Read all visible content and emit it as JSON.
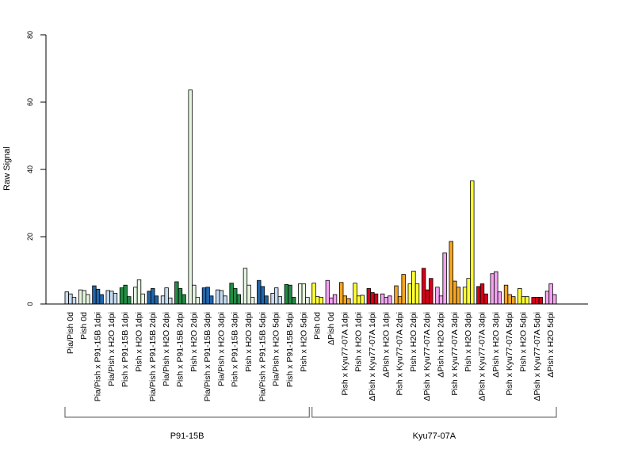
{
  "chart_data": {
    "type": "bar",
    "ylabel": "Raw Signal",
    "ylim": [
      0,
      80
    ],
    "yticks": [
      0,
      20,
      40,
      60,
      80
    ],
    "replicates_per_group": 3,
    "groups": [
      {
        "label": "Pia/Pish 0d",
        "color": "#c6dbef",
        "values": [
          3.6,
          3.0,
          2.0
        ]
      },
      {
        "label": "Pish 0d",
        "color": "#e5f5e0",
        "values": [
          4.2,
          4.0,
          2.8
        ]
      },
      {
        "label": "Pia/Pish x P91-15B 1dpi",
        "color": "#2166ac",
        "values": [
          5.4,
          4.4,
          2.8
        ]
      },
      {
        "label": "Pia/Pish x H2O 1dpi",
        "color": "#c6dbef",
        "values": [
          4.0,
          3.8,
          3.2
        ]
      },
      {
        "label": "Pish x P91-15B 1dpi",
        "color": "#238b45",
        "values": [
          4.8,
          5.6,
          2.2
        ]
      },
      {
        "label": "Pish x H2O 1dpi",
        "color": "#e5f5e0",
        "values": [
          5.0,
          7.2,
          3.0
        ]
      },
      {
        "label": "Pia/Pish x P91-15B 2dpi",
        "color": "#2166ac",
        "values": [
          3.8,
          4.6,
          2.4
        ]
      },
      {
        "label": "Pia/Pish x H2O 2dpi",
        "color": "#c6dbef",
        "values": [
          2.4,
          4.8,
          1.8
        ]
      },
      {
        "label": "Pish x P91-15B 2dpi",
        "color": "#238b45",
        "values": [
          6.6,
          4.6,
          2.8
        ]
      },
      {
        "label": "Pish x H2O 2dpi",
        "color": "#e5f5e0",
        "values": [
          63.6,
          5.6,
          2.0
        ]
      },
      {
        "label": "Pia/Pish x P91-15B 3dpi",
        "color": "#2166ac",
        "values": [
          4.8,
          5.0,
          2.4
        ]
      },
      {
        "label": "Pia/Pish x H2O 3dpi",
        "color": "#c6dbef",
        "values": [
          4.2,
          4.0,
          2.4
        ]
      },
      {
        "label": "Pish x P91-15B 3dpi",
        "color": "#238b45",
        "values": [
          6.2,
          4.6,
          2.8
        ]
      },
      {
        "label": "Pish x H2O 3dpi",
        "color": "#e5f5e0",
        "values": [
          10.6,
          5.6,
          2.0
        ]
      },
      {
        "label": "Pia/Pish x P91-15B 5dpi",
        "color": "#2166ac",
        "values": [
          7.0,
          5.2,
          2.4
        ]
      },
      {
        "label": "Pia/Pish x H2O 5dpi",
        "color": "#c6dbef",
        "values": [
          3.2,
          4.8,
          2.2
        ]
      },
      {
        "label": "Pish x P91-15B 5dpi",
        "color": "#238b45",
        "values": [
          5.8,
          5.6,
          2.0
        ]
      },
      {
        "label": "Pish x H2O 5dpi",
        "color": "#e5f5e0",
        "values": [
          6.0,
          6.0,
          2.0
        ]
      },
      {
        "label": "Pish 0d",
        "color": "#ffff33",
        "values": [
          6.2,
          2.2,
          2.0
        ]
      },
      {
        "label": "ΔPish 0d",
        "color": "#f4a3f0",
        "values": [
          7.0,
          1.8,
          2.8
        ]
      },
      {
        "label": "Pish x Kyu77-07A 1dpi",
        "color": "#f5a623",
        "values": [
          6.4,
          2.4,
          1.6
        ]
      },
      {
        "label": "Pish x H2O 1dpi",
        "color": "#ffff33",
        "values": [
          6.2,
          2.4,
          2.6
        ]
      },
      {
        "label": "ΔPish x Kyu77-07A 1dpi",
        "color": "#d7001a",
        "values": [
          4.6,
          3.4,
          3.0
        ]
      },
      {
        "label": "ΔPish x H2O 1dpi",
        "color": "#f4a3f0",
        "values": [
          3.0,
          2.0,
          2.4
        ]
      },
      {
        "label": "Pish x Kyu77-07A 2dpi",
        "color": "#f5a623",
        "values": [
          5.4,
          2.2,
          8.8
        ]
      },
      {
        "label": "Pish x H2O 2dpi",
        "color": "#ffff33",
        "values": [
          6.0,
          9.8,
          6.0
        ]
      },
      {
        "label": "ΔPish x Kyu77-07A 2dpi",
        "color": "#d7001a",
        "values": [
          10.6,
          4.2,
          7.6
        ]
      },
      {
        "label": "ΔPish x H2O 2dpi",
        "color": "#f4a3f0",
        "values": [
          5.0,
          2.4,
          15.2
        ]
      },
      {
        "label": "Pish x Kyu77-07A 3dpi",
        "color": "#f5a623",
        "values": [
          18.6,
          6.8,
          5.0
        ]
      },
      {
        "label": "Pish x H2O 3dpi",
        "color": "#ffff33",
        "values": [
          5.0,
          7.6,
          36.6
        ]
      },
      {
        "label": "ΔPish x Kyu77-07A 3dpi",
        "color": "#d7001a",
        "values": [
          5.2,
          6.0,
          3.0
        ]
      },
      {
        "label": "ΔPish x H2O 3dpi",
        "color": "#f4a3f0",
        "values": [
          9.0,
          9.6,
          3.6
        ]
      },
      {
        "label": "Pish x Kyu77-07A 5dpi",
        "color": "#f5a623",
        "values": [
          5.6,
          2.8,
          2.2
        ]
      },
      {
        "label": "Pish x H2O 5dpi",
        "color": "#ffff33",
        "values": [
          4.6,
          2.2,
          2.2
        ]
      },
      {
        "label": "ΔPish x Kyu77-07A 5dpi",
        "color": "#d7001a",
        "values": [
          2.0,
          2.0,
          2.0
        ]
      },
      {
        "label": "ΔPish x H2O 5dpi",
        "color": "#f4a3f0",
        "values": [
          3.8,
          6.0,
          2.8
        ]
      }
    ],
    "brackets": [
      {
        "label": "P91-15B",
        "from_group": 0,
        "to_group": 17
      },
      {
        "label": "Kyu77-07A",
        "from_group": 18,
        "to_group": 35
      }
    ]
  }
}
